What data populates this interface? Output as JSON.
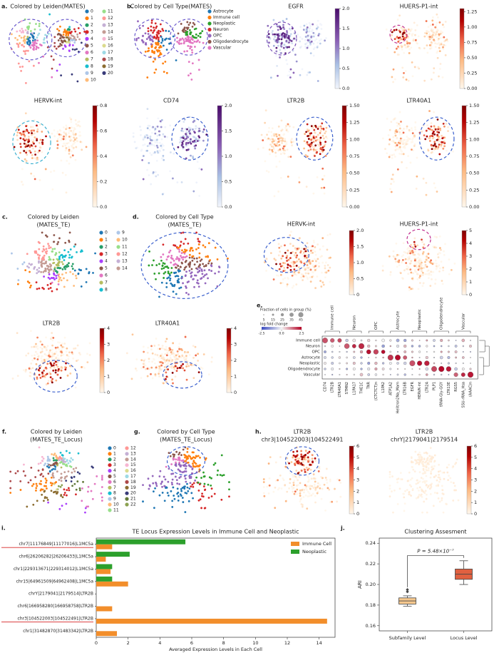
{
  "umaps": [
    {
      "label": "a.",
      "title": "Colored by Leiden(MATES)",
      "legend": [
        "0",
        "1",
        "2",
        "3",
        "4",
        "5",
        "6",
        "7",
        "8",
        "9",
        "10",
        "11",
        "12",
        "13",
        "14",
        "15",
        "16",
        "17",
        "18",
        "19",
        "20"
      ],
      "colors": [
        "#1f77b4",
        "#ff7f0e",
        "#279e68",
        "#d62728",
        "#aa40fc",
        "#8c564b",
        "#e377c2",
        "#b5bd61",
        "#17becf",
        "#aec7e8",
        "#ffbb78",
        "#98df8a",
        "#ff9896",
        "#c5b0d5",
        "#c49c94",
        "#f7b6d2",
        "#dbdb8d",
        "#9edae5",
        "#ad494a",
        "#8c6d31",
        "#393b79"
      ]
    },
    {
      "label": "b.",
      "title": "Colored by Cell Type(MATES)",
      "legend": [
        "Astrocyte",
        "Immune cell",
        "Neoplastic",
        "Neuron",
        "OPC",
        "Oligodendrocyte",
        "Vascular"
      ],
      "colors": [
        "#1f77b4",
        "#ff7f0e",
        "#2ca02c",
        "#d62728",
        "#9467bd",
        "#8c564b",
        "#e377c2"
      ]
    },
    {
      "title": "EGFR",
      "title_color": "#8a4fbf",
      "cmap": "purple",
      "lim": [
        0,
        2
      ],
      "ticks": [
        {
          "value": 0,
          "label": "0.0"
        },
        0.5,
        {
          "value": 1,
          "label": "1.0"
        },
        1.5,
        {
          "value": 2,
          "label": "2.0"
        }
      ]
    },
    {
      "title": "HUERS-P1-int",
      "cmap": "red",
      "lim": [
        0,
        1.3
      ],
      "ticks": [
        {
          "value": 0,
          "label": "0.00"
        },
        0.25,
        {
          "value": 0.5,
          "label": "0.50"
        },
        0.75,
        {
          "value": 1,
          "label": "1.00"
        },
        1.25
      ]
    },
    {
      "title": "HERVK-int",
      "cmap": "red",
      "lim": [
        0,
        0.8
      ],
      "ticks": [
        {
          "value": 0,
          "label": "0.0"
        },
        0.2,
        0.4,
        0.6,
        0.8
      ]
    },
    {
      "title": "CD74",
      "cmap": "purple",
      "lim": [
        0,
        2
      ],
      "ticks": [
        {
          "value": 0,
          "label": "0.0"
        },
        0.5,
        {
          "value": 1,
          "label": "1.0"
        },
        1.5,
        {
          "value": 2,
          "label": "2.0"
        }
      ]
    },
    {
      "title": "LTR2B",
      "cmap": "red",
      "lim": [
        0,
        1.5
      ],
      "ticks": [
        {
          "value": 0,
          "label": "0.00"
        },
        0.25,
        {
          "value": 0.5,
          "label": "0.50"
        },
        0.75,
        {
          "value": 1,
          "label": "1.00"
        },
        1.25,
        {
          "value": 1.5,
          "label": "1.50"
        }
      ]
    },
    {
      "title": "LTR40A1",
      "cmap": "red",
      "lim": [
        0,
        1.5
      ],
      "ticks": [
        {
          "value": 0,
          "label": "0.00"
        },
        0.25,
        {
          "value": 0.5,
          "label": "0.50"
        },
        0.75,
        {
          "value": 1,
          "label": "1.00"
        },
        1.25,
        {
          "value": 1.5,
          "label": "1.50"
        }
      ]
    },
    {
      "label": "c.",
      "title": "Colored by Leiden",
      "title2": "(MATES_TE)",
      "legend": [
        "0",
        "1",
        "2",
        "3",
        "4",
        "5",
        "6",
        "7",
        "8",
        "9",
        "10",
        "11",
        "12",
        "13",
        "14"
      ],
      "colors": [
        "#1f77b4",
        "#ff7f0e",
        "#279e68",
        "#d62728",
        "#aa40fc",
        "#8c564b",
        "#e377c2",
        "#b5bd61",
        "#17becf",
        "#aec7e8",
        "#ffbb78",
        "#98df8a",
        "#ff9896",
        "#c5b0d5",
        "#c49c94"
      ]
    },
    {
      "label": "d.",
      "title": "Colored by Cell Type",
      "title2": "(MATES_TE)"
    },
    {
      "title": "HERVK-int",
      "cmap": "red",
      "lim": [
        0,
        2
      ],
      "ticks": [
        0,
        0.5,
        {
          "value": 1,
          "label": "1.0"
        },
        1.5,
        {
          "value": 2,
          "label": "2.0"
        }
      ]
    },
    {
      "title": "HUERS-P1-int",
      "cmap": "red",
      "lim": [
        0,
        5
      ],
      "ticks": [
        0,
        1,
        2,
        3,
        4,
        5
      ]
    },
    {
      "title": "LTR2B",
      "cmap": "red",
      "lim": [
        0,
        4
      ],
      "ticks": [
        0,
        1,
        2,
        3,
        4
      ]
    },
    {
      "title": "LTR40A1",
      "cmap": "red",
      "lim": [
        0,
        4
      ],
      "ticks": [
        0,
        1,
        2,
        3,
        4
      ]
    },
    {
      "label": "f.",
      "title": "Colored by Leiden",
      "title2": "(MATES_TE_Locus)",
      "legend": [
        "0",
        "1",
        "2",
        "3",
        "4",
        "5",
        "6",
        "7",
        "8",
        "9",
        "10",
        "11",
        "12",
        "13",
        "14",
        "15",
        "16",
        "17",
        "18",
        "19",
        "20",
        "21",
        "22"
      ],
      "colors": [
        "#1f77b4",
        "#ff7f0e",
        "#279e68",
        "#d62728",
        "#aa40fc",
        "#8c564b",
        "#e377c2",
        "#b5bd61",
        "#17becf",
        "#aec7e8",
        "#ffbb78",
        "#98df8a",
        "#ff9896",
        "#c5b0d5",
        "#c49c94",
        "#f7b6d2",
        "#dbdb8d",
        "#9edae5",
        "#ad494a",
        "#8c6d31",
        "#393b79",
        "#637939",
        "#8ca252"
      ]
    },
    {
      "label": "g.",
      "title": "Colored by Cell Type",
      "title2": "(MATES_TE_Locus)"
    },
    {
      "label": "h.",
      "title": "LTR2B",
      "title2": "chr3|104522003|104522491",
      "cmap": "red",
      "lim": [
        0,
        6
      ],
      "ticks": [
        0,
        1,
        2,
        3,
        4,
        5,
        6
      ]
    },
    {
      "title": "LTR2B",
      "title2": "chrY|2179041|2179514",
      "cmap": "red",
      "lim": [
        0,
        6
      ],
      "ticks": [
        0,
        1,
        2,
        3,
        4,
        5,
        6
      ]
    }
  ],
  "dotplot": {
    "label": "e.",
    "size_title": "Fraction of cells in group (%)",
    "size_ticks": [
      5,
      15,
      25,
      35,
      45
    ],
    "color_title": "log fold change",
    "color_ticks": [
      -2.5,
      {
        "value": 0,
        "label": "0.0"
      },
      2.5
    ],
    "rows": [
      "Immune cell",
      "Neuron",
      "OPC",
      "Astrocyte",
      "Neoplastic",
      "Oligodendrocyte",
      "Vascular"
    ],
    "groups": [
      {
        "name": "Immune cell",
        "columns": [
          "CD74",
          "LTR2B",
          "LTR40A1"
        ]
      },
      {
        "name": "Neuron",
        "columns": [
          "STMN2",
          "L1PA17",
          "THE1C"
        ]
      },
      {
        "name": "OPC",
        "columns": [
          "TNR",
          "(CTCTCT)n",
          "L1PA2"
        ]
      },
      {
        "name": "Astrocyte",
        "columns": [
          "ATP1A2",
          "Helitron2Na_Mam",
          "LTR16B"
        ]
      },
      {
        "name": "Neoplastic",
        "columns": [
          "EGFR",
          "HERVK-int",
          "LTR2A"
        ]
      },
      {
        "name": "Oligodendrocyte",
        "columns": [
          "PLP1",
          "tRNA-Gly-GGY",
          "LTR13E"
        ]
      },
      {
        "name": "Vascular",
        "columns": [
          "RGS5",
          "SSU-rRNA_Hsa",
          "(AAAC)n"
        ]
      }
    ]
  },
  "chart_data": [
    {
      "type": "barh",
      "label": "i.",
      "title": "TE Locus Expression Levels in Immune Cell and Neoplastic",
      "categories": [
        "chr7|11176849|11177016|L1MC5a",
        "chr6|26206282|26206433|L1MC5a",
        "chr1|229313671|229314012|L1MC5a",
        "chr15|64961509|64962408|L1MC5a",
        "chrY|2179041|2179514|LTR2B",
        "chr6|166958280|166958758|LTR2B",
        "chr3|104522003|104522491|LTR2B",
        "chr1|31482870|31483342|LTR2B"
      ],
      "series": [
        {
          "name": "Immune Cell",
          "color": "#f28e2b",
          "values": [
            1.0,
            0.6,
            0.9,
            2.0,
            0,
            1.0,
            14.5,
            1.3
          ]
        },
        {
          "name": "Neoplastic",
          "color": "#2ca02c",
          "values": [
            5.6,
            2.1,
            1.0,
            1.0,
            0,
            0,
            0,
            0
          ]
        }
      ],
      "underlined": [
        0,
        6
      ],
      "underline_color": "#d62728",
      "xlabel": "Averaged Expression Levels in Each Cell",
      "xlim": [
        0,
        15
      ],
      "xticks": [
        0,
        2,
        4,
        6,
        8,
        10,
        12,
        14
      ],
      "legend": "upper right"
    },
    {
      "type": "box",
      "label": "j.",
      "title": "Clustering Assesment",
      "ylabel": "ARI",
      "categories": [
        "Subfamily Level",
        "Locus Level"
      ],
      "colors": [
        "#f6c88e",
        "#e06040"
      ],
      "boxes": [
        {
          "whislo": 0.179,
          "q1": 0.181,
          "med": 0.184,
          "q3": 0.187,
          "whishi": 0.189,
          "fliers": [
            0.193,
            0.195
          ]
        },
        {
          "whislo": 0.2,
          "q1": 0.205,
          "med": 0.21,
          "q3": 0.215,
          "whishi": 0.223,
          "fliers": []
        }
      ],
      "annotation": "P = 5.48×10⁻⁷",
      "annotation_at": 0.228,
      "ylim": [
        0.155,
        0.245
      ],
      "yticks": [
        0.16,
        0.18,
        {
          "value": 0.2,
          "label": "0.20"
        },
        0.22,
        0.24
      ]
    }
  ]
}
